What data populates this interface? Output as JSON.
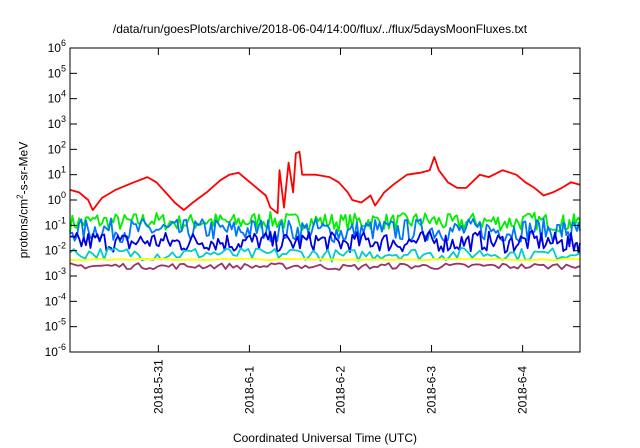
{
  "chart_data": {
    "type": "line",
    "title": "/data/run/goesPlots/archive/2018-06-04/14:00/flux/../flux/5daysMoonFluxes.txt",
    "xlabel": "Coordinated Universal Time (UTC)",
    "ylabel": {
      "pre": "protons/cm",
      "sup": "2",
      "post": "-s-sr-MeV"
    },
    "yscale": "log",
    "ylim": [
      1e-06,
      1000000.0
    ],
    "yticks": [
      {
        "base": "10",
        "exp": "-6",
        "value": 1e-06
      },
      {
        "base": "10",
        "exp": "-5",
        "value": 1e-05
      },
      {
        "base": "10",
        "exp": "-4",
        "value": 0.0001
      },
      {
        "base": "10",
        "exp": "-3",
        "value": 0.001
      },
      {
        "base": "10",
        "exp": "-2",
        "value": 0.01
      },
      {
        "base": "10",
        "exp": "-1",
        "value": 0.1
      },
      {
        "base": "10",
        "exp": "0",
        "value": 1
      },
      {
        "base": "10",
        "exp": "1",
        "value": 10
      },
      {
        "base": "10",
        "exp": "2",
        "value": 100
      },
      {
        "base": "10",
        "exp": "3",
        "value": 1000
      },
      {
        "base": "10",
        "exp": "4",
        "value": 10000
      },
      {
        "base": "10",
        "exp": "5",
        "value": 100000
      },
      {
        "base": "10",
        "exp": "6",
        "value": 1000000
      }
    ],
    "xlim_days": [
      0,
      5.6
    ],
    "xticks": [
      {
        "label": "2018-5-31",
        "day": 0.97
      },
      {
        "label": "2018-6-1",
        "day": 1.97
      },
      {
        "label": "2018-6-2",
        "day": 2.97
      },
      {
        "label": "2018-6-3",
        "day": 3.97
      },
      {
        "label": "2018-6-4",
        "day": 4.97
      }
    ],
    "grid": false,
    "legend": "none",
    "series": [
      {
        "color": "#ff0000",
        "points": [
          [
            0,
            2.5
          ],
          [
            0.1,
            2.0
          ],
          [
            0.2,
            1.0
          ],
          [
            0.25,
            0.4
          ],
          [
            0.35,
            1.2
          ],
          [
            0.5,
            2.5
          ],
          [
            0.7,
            5
          ],
          [
            0.85,
            8
          ],
          [
            0.95,
            5
          ],
          [
            1.05,
            2
          ],
          [
            1.15,
            0.8
          ],
          [
            1.25,
            0.4
          ],
          [
            1.35,
            0.8
          ],
          [
            1.5,
            2
          ],
          [
            1.65,
            6
          ],
          [
            1.75,
            10
          ],
          [
            1.85,
            12
          ],
          [
            1.95,
            6
          ],
          [
            2.05,
            3
          ],
          [
            2.15,
            1.5
          ],
          [
            2.2,
            0.5
          ],
          [
            2.28,
            0.3
          ],
          [
            2.3,
            15
          ],
          [
            2.35,
            0.5
          ],
          [
            2.4,
            30
          ],
          [
            2.45,
            2
          ],
          [
            2.48,
            70
          ],
          [
            2.52,
            80
          ],
          [
            2.55,
            10
          ],
          [
            2.7,
            10
          ],
          [
            2.85,
            8
          ],
          [
            2.95,
            5
          ],
          [
            3.05,
            2
          ],
          [
            3.1,
            1
          ],
          [
            3.2,
            0.8
          ],
          [
            3.3,
            1.5
          ],
          [
            3.35,
            0.6
          ],
          [
            3.45,
            2
          ],
          [
            3.55,
            4
          ],
          [
            3.7,
            10
          ],
          [
            3.85,
            12
          ],
          [
            3.95,
            15
          ],
          [
            4.0,
            50
          ],
          [
            4.05,
            15
          ],
          [
            4.15,
            5
          ],
          [
            4.25,
            3
          ],
          [
            4.35,
            3
          ],
          [
            4.5,
            10
          ],
          [
            4.6,
            8
          ],
          [
            4.75,
            15
          ],
          [
            4.9,
            10
          ],
          [
            5.0,
            5
          ],
          [
            5.1,
            3
          ],
          [
            5.2,
            1.5
          ],
          [
            5.3,
            2
          ],
          [
            5.4,
            3
          ],
          [
            5.5,
            5
          ],
          [
            5.6,
            4
          ]
        ]
      },
      {
        "color": "#00ee00",
        "points": [
          [
            0,
            0.12
          ],
          [
            0.3,
            0.15
          ],
          [
            0.6,
            0.13
          ],
          [
            0.9,
            0.16
          ],
          [
            1.2,
            0.12
          ],
          [
            1.5,
            0.15
          ],
          [
            1.8,
            0.13
          ],
          [
            2.1,
            0.16
          ],
          [
            2.4,
            0.14
          ],
          [
            2.7,
            0.15
          ],
          [
            3.0,
            0.13
          ],
          [
            3.3,
            0.15
          ],
          [
            3.6,
            0.13
          ],
          [
            3.9,
            0.16
          ],
          [
            4.2,
            0.12
          ],
          [
            4.5,
            0.15
          ],
          [
            4.8,
            0.13
          ],
          [
            5.1,
            0.15
          ],
          [
            5.4,
            0.12
          ],
          [
            5.6,
            0.13
          ]
        ],
        "jitter": 0.35
      },
      {
        "color": "#0077ff",
        "points": [
          [
            0,
            0.06
          ],
          [
            0.3,
            0.07
          ],
          [
            0.6,
            0.06
          ],
          [
            0.9,
            0.07
          ],
          [
            1.2,
            0.06
          ],
          [
            1.5,
            0.07
          ],
          [
            1.8,
            0.06
          ],
          [
            2.1,
            0.07
          ],
          [
            2.4,
            0.06
          ],
          [
            2.7,
            0.07
          ],
          [
            3.0,
            0.05
          ],
          [
            3.3,
            0.07
          ],
          [
            3.6,
            0.06
          ],
          [
            3.9,
            0.07
          ],
          [
            4.2,
            0.06
          ],
          [
            4.5,
            0.07
          ],
          [
            4.8,
            0.06
          ],
          [
            5.1,
            0.07
          ],
          [
            5.4,
            0.06
          ],
          [
            5.6,
            0.06
          ]
        ],
        "jitter": 0.45
      },
      {
        "color": "#0000dd",
        "points": [
          [
            0,
            0.02
          ],
          [
            0.3,
            0.025
          ],
          [
            0.6,
            0.02
          ],
          [
            0.9,
            0.025
          ],
          [
            1.2,
            0.02
          ],
          [
            1.5,
            0.025
          ],
          [
            1.8,
            0.02
          ],
          [
            2.1,
            0.025
          ],
          [
            2.4,
            0.02
          ],
          [
            2.7,
            0.025
          ],
          [
            3.0,
            0.02
          ],
          [
            3.3,
            0.025
          ],
          [
            3.6,
            0.02
          ],
          [
            3.9,
            0.025
          ],
          [
            4.2,
            0.02
          ],
          [
            4.5,
            0.025
          ],
          [
            4.8,
            0.02
          ],
          [
            5.1,
            0.025
          ],
          [
            5.4,
            0.02
          ],
          [
            5.6,
            0.02
          ]
        ],
        "jitter": 0.4
      },
      {
        "color": "#00cccc",
        "points": [
          [
            0,
            0.008
          ],
          [
            0.5,
            0.008
          ],
          [
            1.0,
            0.007
          ],
          [
            1.5,
            0.008
          ],
          [
            2.0,
            0.007
          ],
          [
            2.5,
            0.008
          ],
          [
            3.0,
            0.006
          ],
          [
            3.5,
            0.008
          ],
          [
            4.0,
            0.007
          ],
          [
            4.5,
            0.008
          ],
          [
            5.0,
            0.007
          ],
          [
            5.6,
            0.008
          ]
        ],
        "jitter": 0.25
      },
      {
        "color": "#ffff00",
        "points": [
          [
            0,
            0.0045
          ],
          [
            1,
            0.0045
          ],
          [
            2,
            0.0045
          ],
          [
            3,
            0.0045
          ],
          [
            4,
            0.0045
          ],
          [
            5,
            0.0045
          ],
          [
            5.6,
            0.0045
          ]
        ],
        "jitter": 0.03
      },
      {
        "color": "#993366",
        "points": [
          [
            0,
            0.0025
          ],
          [
            0.5,
            0.0025
          ],
          [
            1.0,
            0.0024
          ],
          [
            1.5,
            0.0025
          ],
          [
            2.0,
            0.0024
          ],
          [
            2.5,
            0.0025
          ],
          [
            3.0,
            0.0022
          ],
          [
            3.5,
            0.0025
          ],
          [
            4.0,
            0.0024
          ],
          [
            4.5,
            0.0025
          ],
          [
            5.0,
            0.0024
          ],
          [
            5.6,
            0.0025
          ]
        ],
        "jitter": 0.12
      }
    ]
  }
}
